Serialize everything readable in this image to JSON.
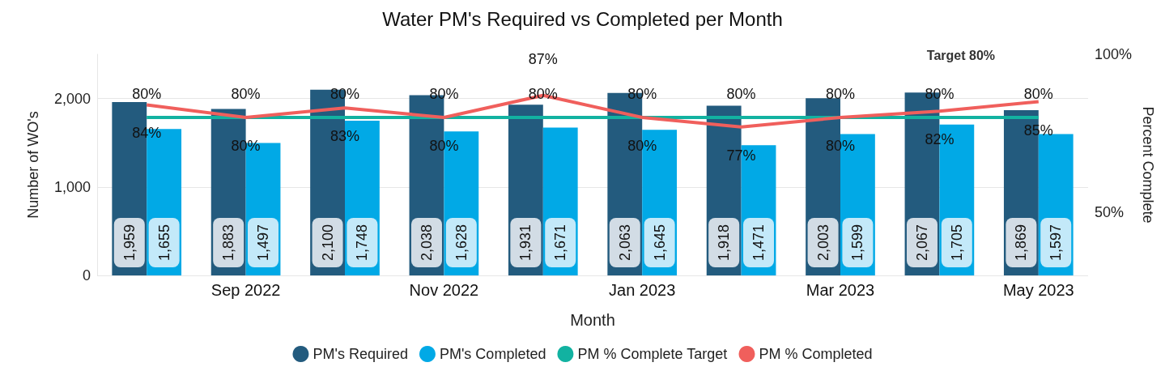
{
  "chart_data": {
    "type": "bar",
    "title": "Water PM's Required vs Completed per Month",
    "xlabel": "Month",
    "ylabel": "Number of WO's",
    "y2label": "Percent Complete",
    "categories": [
      null,
      "Sep 2022",
      null,
      "Nov 2022",
      null,
      "Jan 2023",
      null,
      "Mar 2023",
      null,
      "May 2023"
    ],
    "series": [
      {
        "name": "PM's Required",
        "color": "#235b7e",
        "values": [
          1959,
          1883,
          2100,
          2038,
          1931,
          2063,
          1918,
          2003,
          2067,
          1869
        ],
        "value_labels": [
          "1,959",
          "1,883",
          "2,100",
          "2,038",
          "1,931",
          "2,063",
          "1,918",
          "2,003",
          "2,067",
          "1,869"
        ]
      },
      {
        "name": "PM's Completed",
        "color": "#01a9e6",
        "values": [
          1655,
          1497,
          1748,
          1628,
          1671,
          1645,
          1471,
          1599,
          1705,
          1597
        ],
        "value_labels": [
          "1,655",
          "1,497",
          "1,748",
          "1,628",
          "1,671",
          "1,645",
          "1,471",
          "1,599",
          "1,705",
          "1,597"
        ]
      },
      {
        "name": "PM % Complete Target",
        "type": "line",
        "axis": "y2",
        "color": "#12b2a1",
        "values": [
          80,
          80,
          80,
          80,
          80,
          80,
          80,
          80,
          80,
          80
        ],
        "value_labels": [
          "80%",
          "80%",
          "80%",
          "80%",
          "80%",
          "80%",
          "80%",
          "80%",
          "80%",
          "80%"
        ]
      },
      {
        "name": "PM % Completed",
        "type": "line",
        "axis": "y2",
        "color": "#f05f5c",
        "values": [
          84,
          80,
          83,
          80,
          87,
          80,
          77,
          80,
          82,
          85
        ],
        "value_labels": [
          "84%",
          "80%",
          "83%",
          "80%",
          "87%",
          "80%",
          "77%",
          "80%",
          "82%",
          "85%"
        ]
      }
    ],
    "ylim": [
      0,
      2500
    ],
    "yticks": [
      0,
      {
        "value": 1000,
        "label": "1,000"
      },
      {
        "value": 2000,
        "label": "2,000"
      }
    ],
    "y2lim": [
      30,
      100
    ],
    "y2ticks": [
      {
        "value": 50,
        "label": "50%"
      },
      {
        "value": 100,
        "label": "100%"
      }
    ],
    "annotations": [
      "Target 80%"
    ],
    "grid": "y",
    "legend": "bottom",
    "marker": "none",
    "line_style": "solid"
  }
}
